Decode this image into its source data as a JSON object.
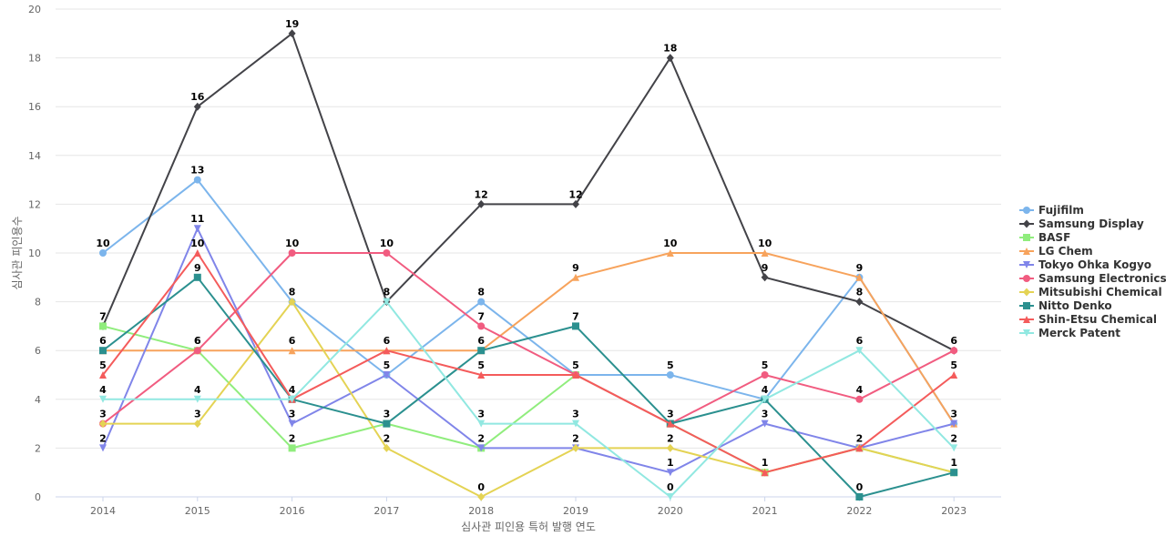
{
  "chart_data": {
    "type": "line",
    "title": "",
    "xlabel": "심사관 피인용 특허 발행 연도",
    "ylabel": "심사관 피인용수",
    "ylim": [
      0,
      20
    ],
    "yticks": [
      0,
      2,
      4,
      6,
      8,
      10,
      12,
      14,
      16,
      18,
      20
    ],
    "grid": true,
    "legend_position": "right",
    "x": [
      "2014",
      "2015",
      "2016",
      "2017",
      "2018",
      "2019",
      "2020",
      "2021",
      "2022",
      "2023"
    ],
    "series": [
      {
        "name": "Fujifilm",
        "color": "#7cb5ec",
        "marker": "circle",
        "values": [
          10,
          13,
          8,
          5,
          8,
          5,
          5,
          4,
          9,
          3
        ]
      },
      {
        "name": "Samsung Display",
        "color": "#434348",
        "marker": "diamond",
        "values": [
          7,
          16,
          19,
          8,
          12,
          12,
          18,
          9,
          8,
          6
        ]
      },
      {
        "name": "BASF",
        "color": "#90ed7d",
        "marker": "square",
        "values": [
          7,
          6,
          2,
          3,
          2,
          5,
          3,
          1,
          2,
          1
        ]
      },
      {
        "name": "LG Chem",
        "color": "#f7a35c",
        "marker": "triangle",
        "values": [
          6,
          6,
          6,
          6,
          6,
          9,
          10,
          10,
          9,
          3
        ]
      },
      {
        "name": "Tokyo Ohka Kogyo",
        "color": "#8085e9",
        "marker": "triangle-down",
        "values": [
          2,
          11,
          3,
          5,
          2,
          2,
          1,
          3,
          2,
          3
        ]
      },
      {
        "name": "Samsung Electronics",
        "color": "#f15c80",
        "marker": "circle",
        "values": [
          3,
          6,
          10,
          10,
          7,
          5,
          3,
          5,
          4,
          6
        ]
      },
      {
        "name": "Mitsubishi Chemical",
        "color": "#e4d354",
        "marker": "diamond",
        "values": [
          3,
          3,
          8,
          2,
          0,
          2,
          2,
          1,
          2,
          1
        ]
      },
      {
        "name": "Nitto Denko",
        "color": "#2b908f",
        "marker": "square",
        "values": [
          6,
          9,
          4,
          3,
          6,
          7,
          3,
          4,
          0,
          1
        ]
      },
      {
        "name": "Shin-Etsu Chemical",
        "color": "#f45b5b",
        "marker": "triangle",
        "values": [
          5,
          10,
          4,
          6,
          5,
          5,
          3,
          1,
          2,
          5
        ]
      },
      {
        "name": "Merck Patent",
        "color": "#91e8e1",
        "marker": "triangle-down",
        "values": [
          4,
          4,
          4,
          8,
          3,
          3,
          0,
          4,
          6,
          2
        ]
      }
    ],
    "data_labels": [
      {
        "x": "2014",
        "values": [
          10,
          7,
          6,
          5,
          4,
          3,
          2
        ]
      },
      {
        "x": "2015",
        "values": [
          16,
          13,
          11,
          10,
          9,
          6,
          6,
          4,
          3
        ]
      },
      {
        "x": "2016",
        "values": [
          19,
          10,
          8,
          6,
          4,
          3,
          2
        ]
      },
      {
        "x": "2017",
        "values": [
          10,
          8,
          6,
          5,
          3,
          2
        ]
      },
      {
        "x": "2018",
        "values": [
          12,
          8,
          7,
          6,
          5,
          3,
          2,
          0
        ]
      },
      {
        "x": "2019",
        "values": [
          12,
          9,
          7,
          5,
          3,
          2
        ]
      },
      {
        "x": "2020",
        "values": [
          18,
          10,
          5,
          3,
          2,
          1,
          0
        ]
      },
      {
        "x": "2021",
        "values": [
          10,
          9,
          5,
          4,
          3,
          1
        ]
      },
      {
        "x": "2022",
        "values": [
          9,
          8,
          6,
          4,
          2,
          0
        ]
      },
      {
        "x": "2023",
        "values": [
          6,
          5,
          3,
          2,
          1
        ]
      }
    ]
  }
}
